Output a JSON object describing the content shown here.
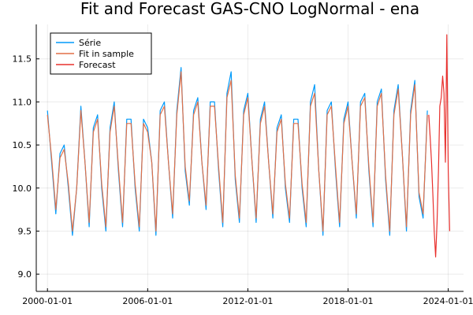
{
  "chart_data": {
    "type": "line",
    "title": "Fit and Forecast GAS-CNO LogNormal - ena",
    "xlabel": "",
    "ylabel": "",
    "x_axis_type": "date",
    "xlim": [
      "1999-05-01",
      "2024-12-01"
    ],
    "ylim": [
      8.8,
      11.9
    ],
    "x_ticks": [
      "2000-01-01",
      "2006-01-01",
      "2012-01-01",
      "2018-01-01",
      "2024-01-01"
    ],
    "x_tick_labels": [
      "2000-01-01",
      "2006-01-01",
      "2012-01-01",
      "2018-01-01",
      "2024-01-01"
    ],
    "y_ticks": [
      9.0,
      9.5,
      10.0,
      10.5,
      11.0,
      11.5
    ],
    "y_tick_labels": [
      "9.0",
      "9.5",
      "10.0",
      "10.5",
      "11.0",
      "11.5"
    ],
    "grid": true,
    "legend_position": "top-left",
    "colors": {
      "serie": "#009AFA",
      "fit": "#E26F46",
      "forecast": "#E8302D"
    },
    "series": [
      {
        "name": "Série",
        "color": "#009AFA",
        "x": [
          "2000-01-01",
          "2000-04-01",
          "2000-07-01",
          "2000-10-01",
          "2001-01-01",
          "2001-04-01",
          "2001-07-01",
          "2001-10-01",
          "2002-01-01",
          "2002-04-01",
          "2002-07-01",
          "2002-10-01",
          "2003-01-01",
          "2003-04-01",
          "2003-07-01",
          "2003-10-01",
          "2004-01-01",
          "2004-04-01",
          "2004-07-01",
          "2004-10-01",
          "2005-01-01",
          "2005-04-01",
          "2005-07-01",
          "2005-10-01",
          "2006-01-01",
          "2006-04-01",
          "2006-07-01",
          "2006-10-01",
          "2007-01-01",
          "2007-04-01",
          "2007-07-01",
          "2007-10-01",
          "2008-01-01",
          "2008-04-01",
          "2008-07-01",
          "2008-10-01",
          "2009-01-01",
          "2009-04-01",
          "2009-07-01",
          "2009-10-01",
          "2010-01-01",
          "2010-04-01",
          "2010-07-01",
          "2010-10-01",
          "2011-01-01",
          "2011-04-01",
          "2011-07-01",
          "2011-10-01",
          "2012-01-01",
          "2012-04-01",
          "2012-07-01",
          "2012-10-01",
          "2013-01-01",
          "2013-04-01",
          "2013-07-01",
          "2013-10-01",
          "2014-01-01",
          "2014-04-01",
          "2014-07-01",
          "2014-10-01",
          "2015-01-01",
          "2015-04-01",
          "2015-07-01",
          "2015-10-01",
          "2016-01-01",
          "2016-04-01",
          "2016-07-01",
          "2016-10-01",
          "2017-01-01",
          "2017-04-01",
          "2017-07-01",
          "2017-10-01",
          "2018-01-01",
          "2018-04-01",
          "2018-07-01",
          "2018-10-01",
          "2019-01-01",
          "2019-04-01",
          "2019-07-01",
          "2019-10-01",
          "2020-01-01",
          "2020-04-01",
          "2020-07-01",
          "2020-10-01",
          "2021-01-01",
          "2021-04-01",
          "2021-07-01",
          "2021-10-01",
          "2022-01-01",
          "2022-04-01",
          "2022-07-01",
          "2022-10-01"
        ],
        "y": [
          10.9,
          10.3,
          9.7,
          10.4,
          10.5,
          10.0,
          9.45,
          10.0,
          10.95,
          10.3,
          9.55,
          10.7,
          10.85,
          10.0,
          9.5,
          10.7,
          11.0,
          10.2,
          9.55,
          10.8,
          10.8,
          10.0,
          9.5,
          10.8,
          10.7,
          10.3,
          9.45,
          10.9,
          11.0,
          10.3,
          9.65,
          10.9,
          11.4,
          10.2,
          9.8,
          10.9,
          11.05,
          10.3,
          9.75,
          11.0,
          11.0,
          10.2,
          9.55,
          11.1,
          11.35,
          10.1,
          9.6,
          10.9,
          11.1,
          10.3,
          9.6,
          10.8,
          11.0,
          10.3,
          9.65,
          10.7,
          10.85,
          10.0,
          9.6,
          10.8,
          10.8,
          10.0,
          9.55,
          11.0,
          11.2,
          10.2,
          9.45,
          10.9,
          11.0,
          10.2,
          9.55,
          10.8,
          11.0,
          10.3,
          9.65,
          11.0,
          11.1,
          10.2,
          9.55,
          11.0,
          11.15,
          10.1,
          9.45,
          10.9,
          11.2,
          10.4,
          9.5,
          10.9,
          11.25,
          9.9,
          9.65,
          10.9
        ]
      },
      {
        "name": "Fit in sample",
        "color": "#E26F46",
        "x": [
          "2000-01-01",
          "2000-04-01",
          "2000-07-01",
          "2000-10-01",
          "2001-01-01",
          "2001-04-01",
          "2001-07-01",
          "2001-10-01",
          "2002-01-01",
          "2002-04-01",
          "2002-07-01",
          "2002-10-01",
          "2003-01-01",
          "2003-04-01",
          "2003-07-01",
          "2003-10-01",
          "2004-01-01",
          "2004-04-01",
          "2004-07-01",
          "2004-10-01",
          "2005-01-01",
          "2005-04-01",
          "2005-07-01",
          "2005-10-01",
          "2006-01-01",
          "2006-04-01",
          "2006-07-01",
          "2006-10-01",
          "2007-01-01",
          "2007-04-01",
          "2007-07-01",
          "2007-10-01",
          "2008-01-01",
          "2008-04-01",
          "2008-07-01",
          "2008-10-01",
          "2009-01-01",
          "2009-04-01",
          "2009-07-01",
          "2009-10-01",
          "2010-01-01",
          "2010-04-01",
          "2010-07-01",
          "2010-10-01",
          "2011-01-01",
          "2011-04-01",
          "2011-07-01",
          "2011-10-01",
          "2012-01-01",
          "2012-04-01",
          "2012-07-01",
          "2012-10-01",
          "2013-01-01",
          "2013-04-01",
          "2013-07-01",
          "2013-10-01",
          "2014-01-01",
          "2014-04-01",
          "2014-07-01",
          "2014-10-01",
          "2015-01-01",
          "2015-04-01",
          "2015-07-01",
          "2015-10-01",
          "2016-01-01",
          "2016-04-01",
          "2016-07-01",
          "2016-10-01",
          "2017-01-01",
          "2017-04-01",
          "2017-07-01",
          "2017-10-01",
          "2018-01-01",
          "2018-04-01",
          "2018-07-01",
          "2018-10-01",
          "2019-01-01",
          "2019-04-01",
          "2019-07-01",
          "2019-10-01",
          "2020-01-01",
          "2020-04-01",
          "2020-07-01",
          "2020-10-01",
          "2021-01-01",
          "2021-04-01",
          "2021-07-01",
          "2021-10-01",
          "2022-01-01",
          "2022-04-01",
          "2022-07-01",
          "2022-10-01"
        ],
        "y": [
          10.85,
          10.35,
          9.75,
          10.35,
          10.45,
          10.05,
          9.5,
          10.0,
          10.9,
          10.3,
          9.6,
          10.65,
          10.8,
          10.05,
          9.55,
          10.65,
          10.95,
          10.25,
          9.6,
          10.75,
          10.75,
          10.05,
          9.55,
          10.75,
          10.65,
          10.3,
          9.5,
          10.85,
          10.95,
          10.3,
          9.7,
          10.85,
          11.35,
          10.25,
          9.85,
          10.85,
          11.0,
          10.3,
          9.8,
          10.95,
          10.95,
          10.25,
          9.6,
          11.05,
          11.25,
          10.15,
          9.65,
          10.85,
          11.05,
          10.3,
          9.65,
          10.75,
          10.95,
          10.3,
          9.7,
          10.65,
          10.8,
          10.05,
          9.65,
          10.75,
          10.75,
          10.05,
          9.6,
          10.95,
          11.1,
          10.2,
          9.5,
          10.85,
          10.95,
          10.25,
          9.6,
          10.75,
          10.95,
          10.3,
          9.7,
          10.95,
          11.05,
          10.25,
          9.6,
          10.95,
          11.1,
          10.15,
          9.5,
          10.85,
          11.15,
          10.4,
          9.55,
          10.85,
          11.2,
          9.95,
          9.7,
          10.85
        ]
      },
      {
        "name": "Forecast",
        "color": "#E8302D",
        "x": [
          "2022-11-01",
          "2022-12-01",
          "2023-01-01",
          "2023-02-01",
          "2023-03-01",
          "2023-04-01",
          "2023-05-01",
          "2023-06-01",
          "2023-07-01",
          "2023-08-01",
          "2023-09-01",
          "2023-10-01",
          "2023-11-01",
          "2023-12-01",
          "2024-01-01",
          "2024-02-01"
        ],
        "y": [
          10.85,
          10.6,
          10.3,
          9.9,
          9.5,
          9.2,
          9.6,
          10.2,
          10.95,
          11.05,
          11.3,
          11.1,
          10.3,
          11.78,
          10.2,
          9.5
        ]
      }
    ]
  }
}
